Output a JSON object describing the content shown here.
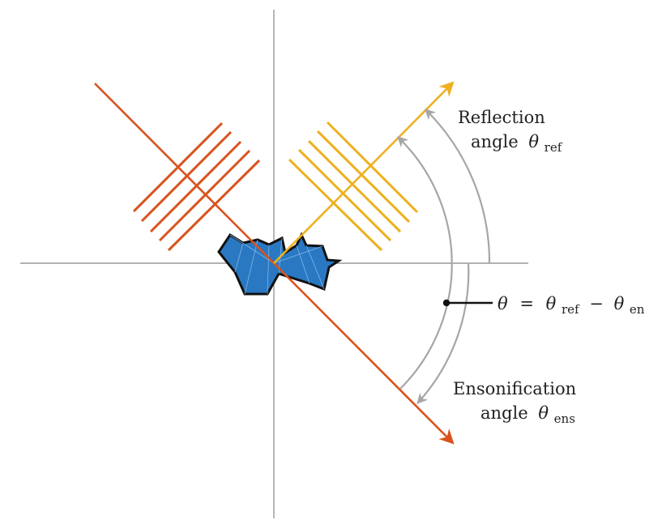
{
  "colors": {
    "ensonification": "#D9531E",
    "reflection": "#EDB120",
    "object": "#2A78C2",
    "object_outline": "#111111",
    "axes": "#999999",
    "arc": "#A6A6A6",
    "pointer": "#111111"
  },
  "reflection_label": {
    "line1": "Reflection",
    "line2_word": "angle",
    "symbol": "θ",
    "subscript": "ref"
  },
  "ensonification_label": {
    "line1": "Ensonification",
    "line2_word": "angle",
    "symbol": "θ",
    "subscript": "ens"
  },
  "equation": {
    "lhs": "θ",
    "equals": "=",
    "term1_symbol": "θ",
    "term1_sub": "ref",
    "minus": "−",
    "term2_symbol": "θ",
    "term2_sub": "ens"
  }
}
